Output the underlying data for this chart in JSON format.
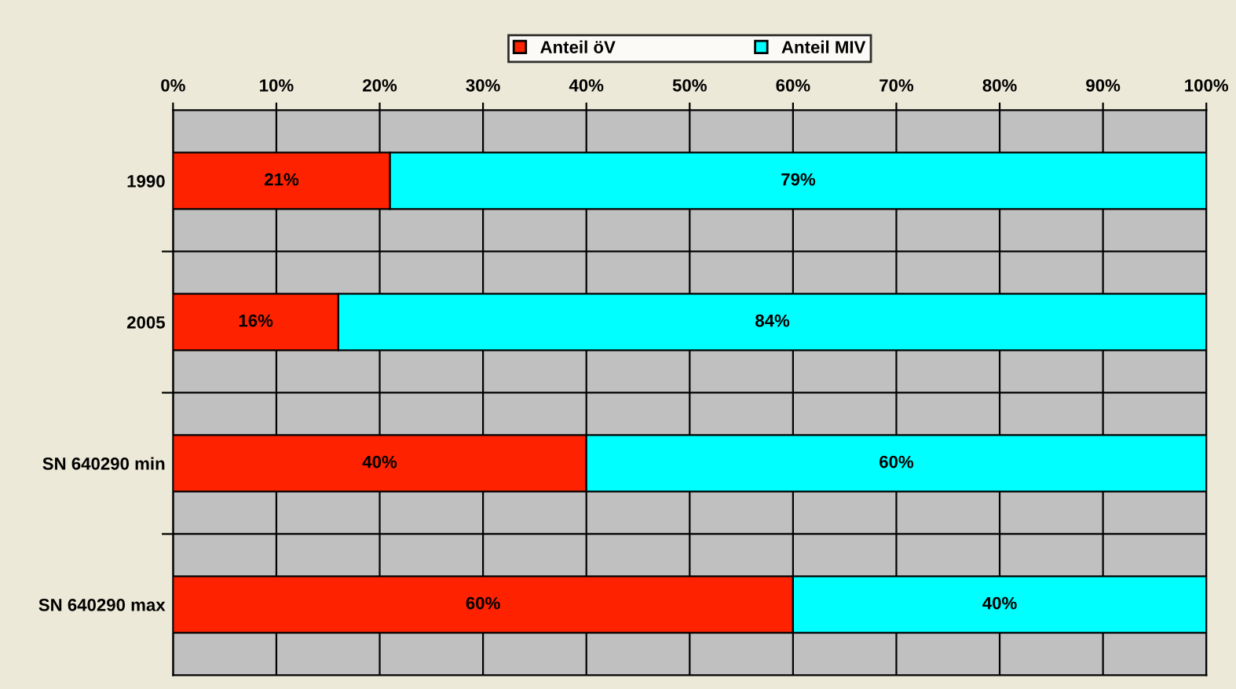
{
  "chart_data": {
    "type": "bar",
    "orientation": "horizontal",
    "stacked": true,
    "categories": [
      "1990",
      "2005",
      "SN 640290 min",
      "SN 640290 max"
    ],
    "series": [
      {
        "name": "Anteil öV",
        "color": "#ff2200",
        "values": [
          21,
          16,
          40,
          60
        ],
        "value_labels": [
          "21%",
          "16%",
          "40%",
          "60%"
        ]
      },
      {
        "name": "Anteil MIV",
        "color": "#00ffff",
        "values": [
          79,
          84,
          60,
          40
        ],
        "value_labels": [
          "79%",
          "84%",
          "60%",
          "40%"
        ]
      }
    ],
    "xlim": [
      0,
      100
    ],
    "xticks": [
      {
        "value": 0,
        "label": "0%"
      },
      {
        "value": 10,
        "label": "10%"
      },
      {
        "value": 20,
        "label": "20%"
      },
      {
        "value": 30,
        "label": "30%"
      },
      {
        "value": 40,
        "label": "40%"
      },
      {
        "value": 50,
        "label": "50%"
      },
      {
        "value": 60,
        "label": "60%"
      },
      {
        "value": 70,
        "label": "70%"
      },
      {
        "value": 80,
        "label": "80%"
      },
      {
        "value": 90,
        "label": "90%"
      },
      {
        "value": 100,
        "label": "100%"
      }
    ],
    "grid": true,
    "legend": "top"
  }
}
